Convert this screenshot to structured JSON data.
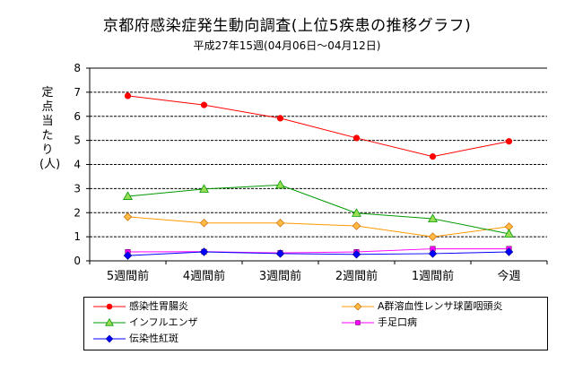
{
  "chart_data": {
    "type": "line",
    "title": "京都府感染症発生動向調査(上位5疾患の推移グラフ)",
    "subtitle": "平成27年15週(04月06日〜04月12日)",
    "ylabel": "定点当たり(人)",
    "xlabel": "",
    "ylim": [
      0,
      8
    ],
    "yticks": [
      0,
      1,
      2,
      3,
      4,
      5,
      6,
      7,
      8
    ],
    "grid": true,
    "legend_position": "bottom",
    "categories": [
      "5週間前",
      "4週間前",
      "3週間前",
      "2週間前",
      "1週間前",
      "今週"
    ],
    "series": [
      {
        "name": "感染性胃腸炎",
        "color": "#ff0000",
        "marker": "circle",
        "values": [
          6.85,
          6.47,
          5.92,
          5.1,
          4.33,
          4.96
        ]
      },
      {
        "name": "A群溶血性レンサ球菌咽頭炎",
        "color": "#ff9900",
        "marker": "diamond",
        "values": [
          1.83,
          1.57,
          1.57,
          1.45,
          1.0,
          1.42
        ]
      },
      {
        "name": "インフルエンザ",
        "color": "#009900",
        "marker": "triangle",
        "values": [
          2.68,
          2.98,
          3.15,
          1.98,
          1.75,
          1.12
        ]
      },
      {
        "name": "手足口病",
        "color": "#ff00ff",
        "marker": "square",
        "values": [
          0.37,
          0.38,
          0.33,
          0.37,
          0.5,
          0.5
        ]
      },
      {
        "name": "伝染性紅斑",
        "color": "#0000ff",
        "marker": "diamond",
        "values": [
          0.22,
          0.37,
          0.3,
          0.27,
          0.3,
          0.37
        ]
      }
    ]
  }
}
